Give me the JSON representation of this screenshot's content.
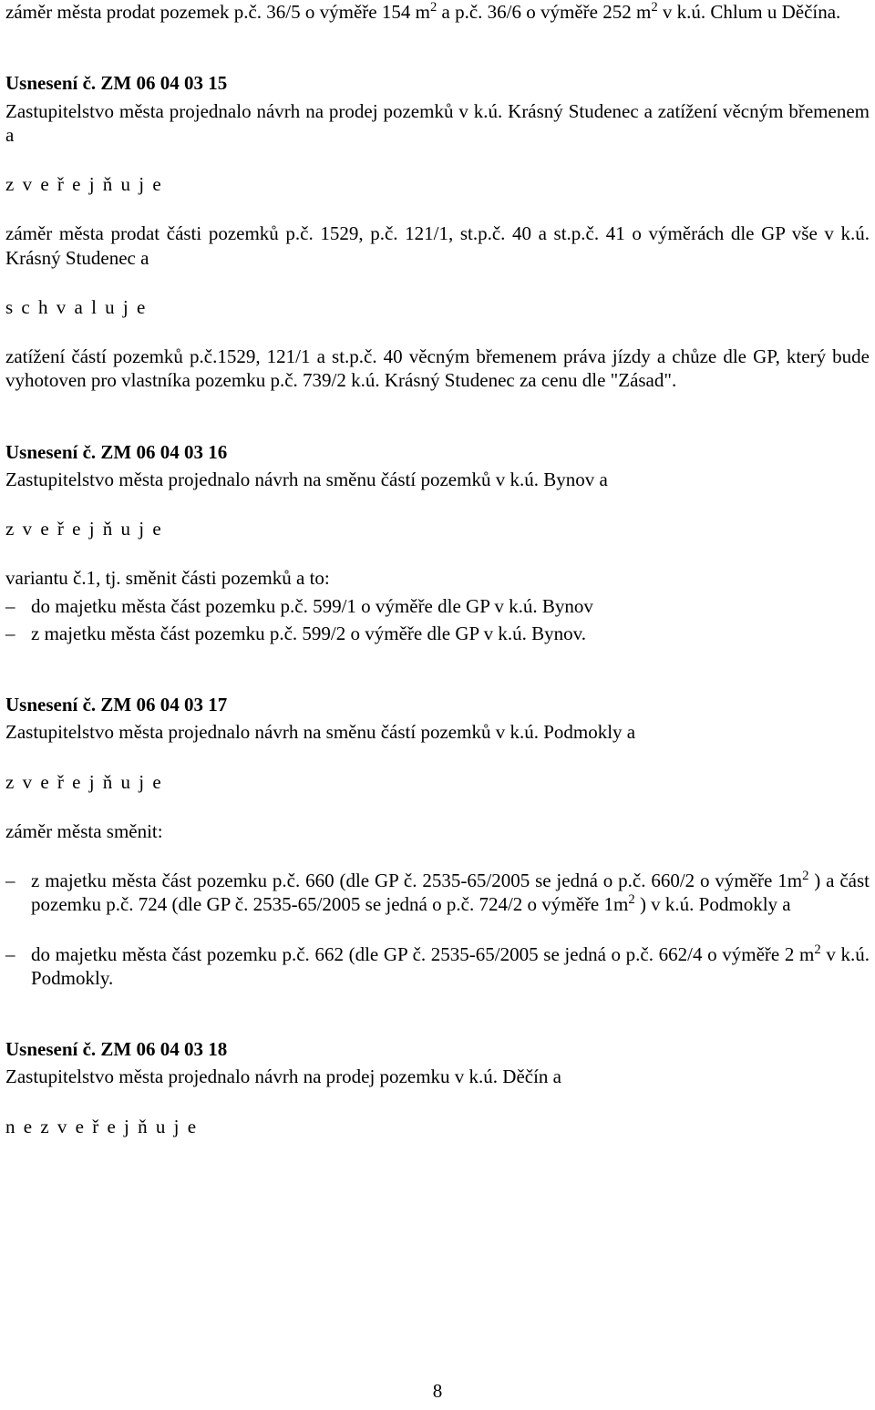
{
  "colors": {
    "text": "#000000",
    "background": "#ffffff"
  },
  "typography": {
    "font_family": "Times New Roman",
    "body_fontsize_pt": 16,
    "line_height": 1.25
  },
  "page_number": "8",
  "top_paragraph_part1": "záměr města prodat pozemek p.č. 36/5 o výměře 154 m",
  "sup2": "2",
  "top_paragraph_part2": " a p.č. 36/6 o výměře 252 m",
  "top_paragraph_part3": " v k.ú. Chlum u Děčína.",
  "sections": [
    {
      "heading": "Usnesení č. ZM 06 04 03 15",
      "lead": "Zastupitelstvo města projednalo návrh na prodej pozemků v k.ú. Krásný Studenec a zatížení věcným břemenem a",
      "action1": "z v e ř e j ň u j e",
      "body1": "záměr města prodat části pozemků p.č. 1529, p.č. 121/1, st.p.č. 40 a st.p.č. 41 o výměrách dle GP vše v k.ú. Krásný Studenec a",
      "action2": "s c h v a l u j e",
      "body2": "zatížení částí pozemků p.č.1529, 121/1 a st.p.č. 40 věcným břemenem práva jízdy a chůze dle GP, který bude vyhotoven pro vlastníka pozemku p.č. 739/2 k.ú. Krásný Studenec za cenu dle \"Zásad\"."
    },
    {
      "heading": "Usnesení č. ZM 06 04 03 16",
      "lead": "Zastupitelstvo města projednalo návrh na směnu částí pozemků v k.ú. Bynov a",
      "action1": "z v e ř e j ň u j e",
      "body1": "variantu č.1, tj. směnit části pozemků a to:",
      "bullets": [
        "do majetku města část pozemku p.č. 599/1 o výměře dle GP v k.ú. Bynov",
        "z majetku města část pozemku p.č. 599/2 o výměře dle GP v k.ú. Bynov."
      ]
    },
    {
      "heading": "Usnesení č. ZM 06 04 03 17",
      "lead": "Zastupitelstvo města projednalo návrh na směnu částí pozemků v k.ú. Podmokly a",
      "action1": "z v e ř e j ň u j e",
      "body1": "záměr města směnit:",
      "bullets_rich": [
        {
          "p1": "z majetku města část pozemku p.č. 660 (dle GP č. 2535-65/2005 se jedná o p.č. 660/2 o výměře 1m",
          "p2": " ) a část pozemku p.č. 724 (dle GP č. 2535-65/2005 se jedná o p.č. 724/2 o výměře 1m",
          "p3": " ) v k.ú. Podmokly a"
        },
        {
          "p1": "do majetku města část pozemku p.č. 662 (dle GP č. 2535-65/2005 se jedná o p.č. 662/4 o výměře 2 m",
          "p2": " v k.ú. Podmokly."
        }
      ]
    },
    {
      "heading": "Usnesení č. ZM 06 04 03 18",
      "lead": "Zastupitelstvo města projednalo návrh na prodej pozemku v k.ú. Děčín a",
      "action1": "n e z v e ř e j ň u j e"
    }
  ]
}
